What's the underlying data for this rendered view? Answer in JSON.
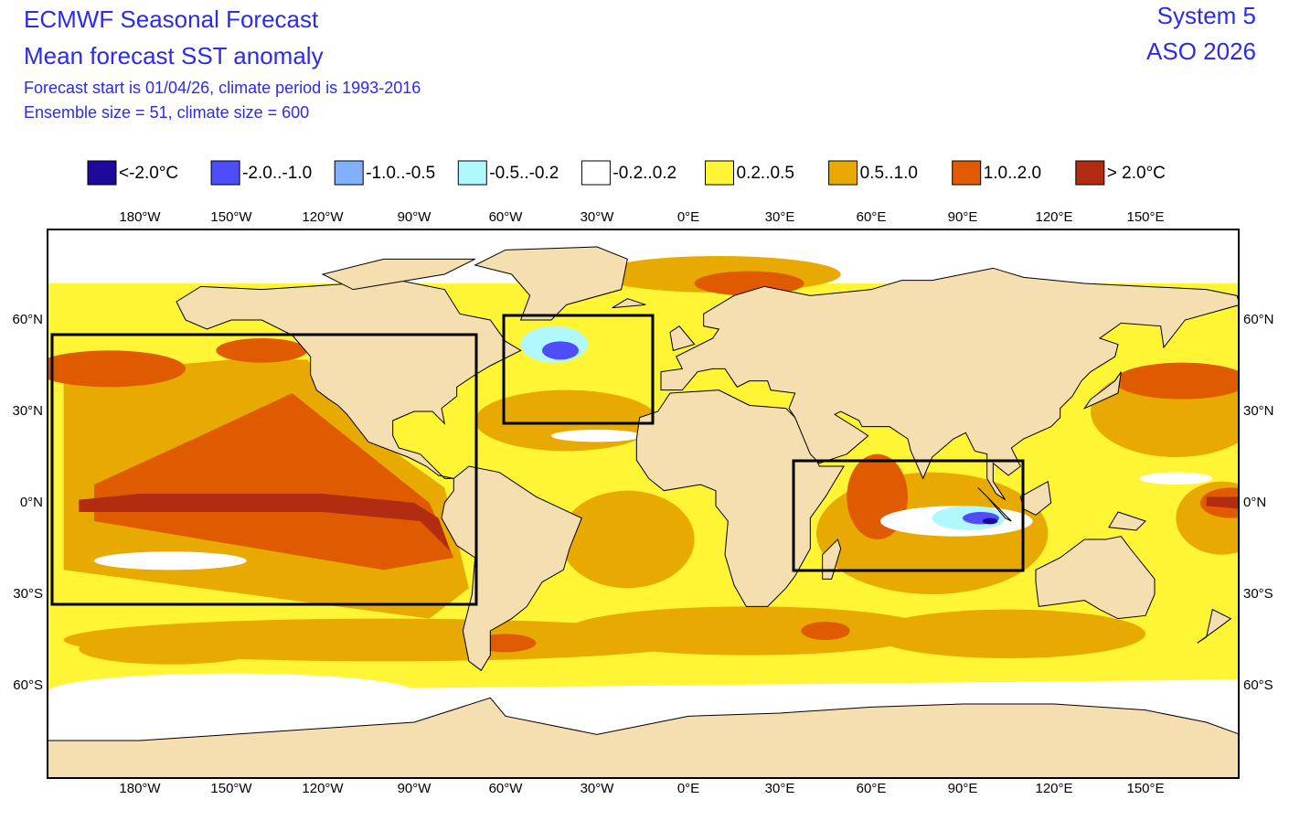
{
  "header": {
    "title": "ECMWF Seasonal Forecast",
    "subtitle": "Mean forecast SST anomaly",
    "info": [
      "Forecast start is 01/04/26, climate period is 1993-2016",
      "Ensemble size = 51, climate size = 600"
    ],
    "system": "System 5",
    "period": "ASO 2026"
  },
  "legend": {
    "items": [
      {
        "label": "<-2.0°C",
        "color": "#1c0a9c"
      },
      {
        "label": "-2.0..-1.0",
        "color": "#4d4dfa"
      },
      {
        "label": "-1.0..-0.5",
        "color": "#80b0ff"
      },
      {
        "label": "-0.5..-0.2",
        "color": "#b0f8ff"
      },
      {
        "label": "-0.2..0.2",
        "color": "#ffffff"
      },
      {
        "label": "0.2..0.5",
        "color": "#fff535"
      },
      {
        "label": "0.5..1.0",
        "color": "#e8aa00"
      },
      {
        "label": "1.0..2.0",
        "color": "#e05a00"
      },
      {
        "label": "> 2.0°C",
        "color": "#b22c12"
      }
    ]
  },
  "map": {
    "lon_labels": [
      "180°W",
      "150°W",
      "120°W",
      "90°W",
      "60°W",
      "30°W",
      "0°E",
      "30°E",
      "60°E",
      "90°E",
      "120°E",
      "150°E"
    ],
    "lat_labels": [
      "60°N",
      "30°N",
      "0°N",
      "30°S",
      "60°S"
    ],
    "land_color": "#f5deb0"
  }
}
